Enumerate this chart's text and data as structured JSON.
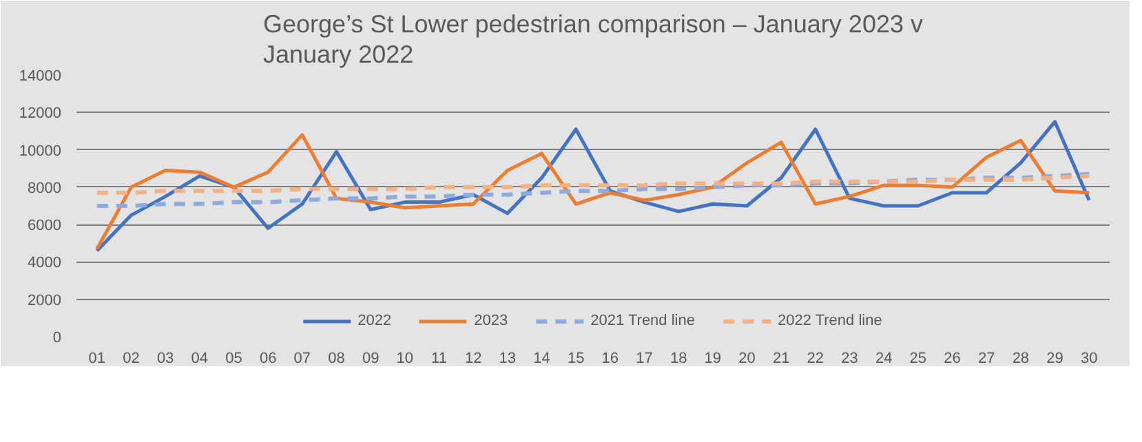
{
  "chart_data": {
    "type": "line",
    "title": "George’s St Lower pedestrian comparison – January 2023 v January 2022",
    "categories": [
      "01",
      "02",
      "03",
      "04",
      "05",
      "06",
      "07",
      "08",
      "09",
      "10",
      "11",
      "12",
      "13",
      "14",
      "15",
      "16",
      "17",
      "18",
      "19",
      "20",
      "21",
      "22",
      "23",
      "24",
      "25",
      "26",
      "27",
      "28",
      "29",
      "30"
    ],
    "ylim": [
      0,
      14000
    ],
    "yticks": [
      0,
      2000,
      4000,
      6000,
      8000,
      10000,
      12000,
      14000
    ],
    "grid": "y",
    "legend": "bottom",
    "marker": "none",
    "series": [
      {
        "name": "2022",
        "color": "#4472c4",
        "line_style": "solid",
        "values": [
          4600,
          6500,
          7500,
          8600,
          8000,
          5800,
          7100,
          9900,
          6800,
          7200,
          7200,
          7600,
          6600,
          8500,
          11100,
          7800,
          7200,
          6700,
          7100,
          7000,
          8500,
          11100,
          7400,
          7000,
          7000,
          7700,
          7700,
          9300,
          11500,
          7300
        ]
      },
      {
        "name": "2023",
        "color": "#ed7d31",
        "line_style": "solid",
        "values": [
          4700,
          8000,
          8900,
          8800,
          8000,
          8800,
          10800,
          7400,
          7200,
          6900,
          7000,
          7100,
          8900,
          9800,
          7100,
          7700,
          7300,
          7600,
          8000,
          9300,
          10400,
          7100,
          7500,
          8100,
          8100,
          8000,
          9600,
          10500,
          7800,
          7700
        ]
      },
      {
        "name": "2021 Trend line",
        "color": "#8faadc",
        "line_style": "dashed",
        "values": [
          7000,
          7000,
          7100,
          7100,
          7200,
          7200,
          7300,
          7400,
          7400,
          7500,
          7500,
          7600,
          7600,
          7700,
          7800,
          7800,
          7900,
          7900,
          8000,
          8100,
          8100,
          8200,
          8200,
          8300,
          8400,
          8400,
          8500,
          8500,
          8600,
          8700
        ]
      },
      {
        "name": "2022 Trend line",
        "color": "#f4b183",
        "line_style": "dashed",
        "values": [
          7700,
          7700,
          7800,
          7800,
          7800,
          7800,
          7900,
          7900,
          7900,
          7900,
          8000,
          8000,
          8000,
          8100,
          8100,
          8100,
          8100,
          8200,
          8200,
          8200,
          8200,
          8300,
          8300,
          8300,
          8300,
          8400,
          8400,
          8400,
          8500,
          8600
        ]
      }
    ]
  }
}
